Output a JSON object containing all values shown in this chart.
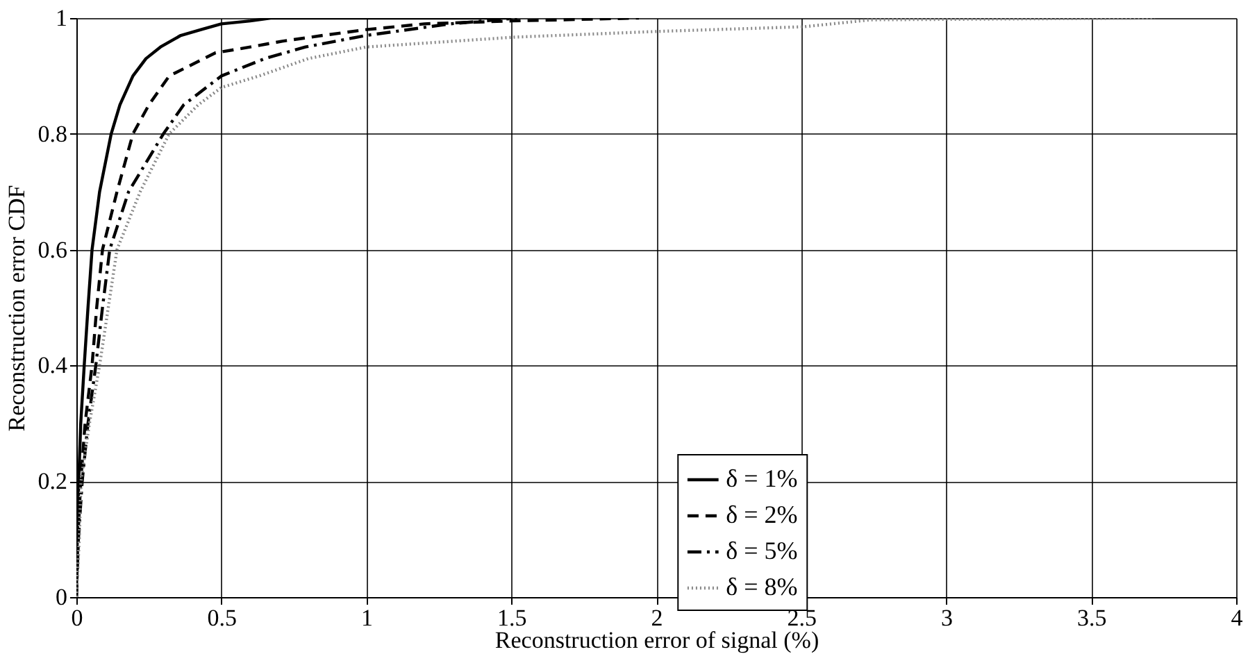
{
  "chart_data": {
    "type": "line",
    "xlabel": "Reconstruction error of signal (%)",
    "ylabel": "Reconstruction error CDF",
    "xlim": [
      0,
      4
    ],
    "ylim": [
      0,
      1
    ],
    "xticks": [
      0,
      0.5,
      1,
      1.5,
      2,
      2.5,
      3,
      3.5,
      4
    ],
    "yticks": [
      0,
      0.2,
      0.4,
      0.6,
      0.8,
      1
    ],
    "grid": true,
    "legend": "bottom",
    "marker": "none",
    "series": [
      {
        "name": "δ = 1%",
        "color": "#000000",
        "line_style": "solid",
        "x": [
          0,
          0.003,
          0.008,
          0.015,
          0.027,
          0.04,
          0.054,
          0.08,
          0.12,
          0.15,
          0.195,
          0.24,
          0.29,
          0.36,
          0.43,
          0.5,
          0.6,
          0.67,
          1.0,
          1.5
        ],
        "values": [
          0,
          0.1,
          0.2,
          0.3,
          0.4,
          0.5,
          0.6,
          0.7,
          0.8,
          0.85,
          0.9,
          0.93,
          0.95,
          0.97,
          0.98,
          0.99,
          0.995,
          1,
          1,
          1
        ]
      },
      {
        "name": "δ = 2%",
        "color": "#000000",
        "line_style": "dashed",
        "x": [
          0,
          0.005,
          0.015,
          0.03,
          0.054,
          0.07,
          0.09,
          0.14,
          0.195,
          0.25,
          0.32,
          0.4,
          0.48,
          0.6,
          0.71,
          0.85,
          1.0,
          1.2,
          1.5,
          1.94
        ],
        "values": [
          0,
          0.1,
          0.2,
          0.3,
          0.4,
          0.5,
          0.6,
          0.7,
          0.8,
          0.85,
          0.9,
          0.92,
          0.94,
          0.95,
          0.96,
          0.97,
          0.98,
          0.99,
          0.995,
          1
        ]
      },
      {
        "name": "δ = 5%",
        "color": "#000000",
        "line_style": "dashdot",
        "x": [
          0,
          0.007,
          0.02,
          0.04,
          0.067,
          0.09,
          0.115,
          0.18,
          0.3,
          0.37,
          0.5,
          0.65,
          0.79,
          1.0,
          1.29,
          1.52
        ],
        "values": [
          0,
          0.1,
          0.2,
          0.3,
          0.4,
          0.5,
          0.6,
          0.7,
          0.8,
          0.85,
          0.9,
          0.93,
          0.95,
          0.97,
          0.99,
          1
        ]
      },
      {
        "name": "δ = 8%",
        "color": "#888888",
        "line_style": "dotted",
        "x": [
          0,
          0.01,
          0.016,
          0.045,
          0.08,
          0.11,
          0.14,
          0.22,
          0.32,
          0.42,
          0.5,
          0.63,
          0.8,
          1.0,
          1.51,
          2.01,
          2.51,
          2.74,
          3.72
        ],
        "values": [
          0,
          0.1,
          0.2,
          0.3,
          0.4,
          0.5,
          0.6,
          0.7,
          0.8,
          0.85,
          0.88,
          0.9,
          0.93,
          0.95,
          0.967,
          0.977,
          0.985,
          0.997,
          1
        ]
      }
    ]
  }
}
